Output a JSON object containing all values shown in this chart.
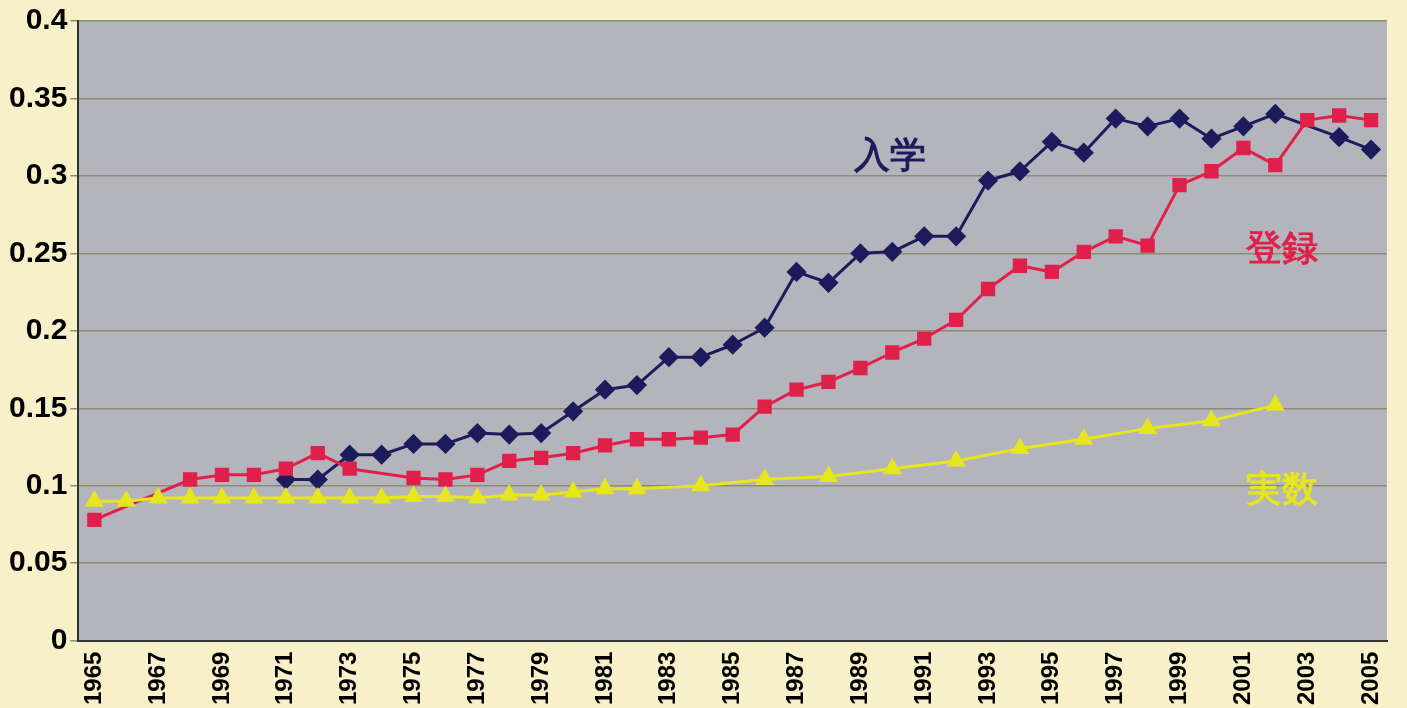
{
  "chart_data": {
    "type": "line",
    "categories": [
      "1965",
      null,
      "1967",
      null,
      "1969",
      null,
      "1971",
      null,
      "1973",
      null,
      "1975",
      null,
      "1977",
      null,
      "1979",
      null,
      "1981",
      null,
      "1983",
      null,
      "1985",
      null,
      "1987",
      null,
      "1989",
      null,
      "1991",
      null,
      "1993",
      null,
      "1995",
      null,
      "1997",
      null,
      "1999",
      null,
      "2001",
      null,
      "2003",
      null,
      "2005"
    ],
    "series": [
      {
        "name": "入学",
        "color": "#1c1c5c",
        "marker": "diamond",
        "values": [
          null,
          null,
          null,
          null,
          null,
          null,
          0.104,
          0.104,
          0.12,
          0.12,
          0.127,
          0.127,
          0.134,
          0.133,
          0.134,
          0.148,
          0.162,
          0.165,
          0.183,
          0.183,
          0.191,
          0.202,
          0.238,
          0.231,
          0.25,
          0.251,
          0.261,
          0.261,
          0.297,
          0.303,
          0.322,
          0.315,
          0.337,
          0.332,
          0.337,
          0.324,
          0.332,
          0.34,
          null,
          0.325,
          0.317
        ]
      },
      {
        "name": "登録",
        "color": "#e0204a",
        "marker": "square",
        "values": [
          0.078,
          null,
          null,
          0.104,
          0.107,
          0.107,
          0.111,
          0.121,
          0.111,
          null,
          0.105,
          0.104,
          0.107,
          0.116,
          0.118,
          0.121,
          0.126,
          0.13,
          0.13,
          0.131,
          0.133,
          0.151,
          0.162,
          0.167,
          0.176,
          0.186,
          0.195,
          0.207,
          0.227,
          0.242,
          0.238,
          0.251,
          0.261,
          0.255,
          0.294,
          0.303,
          0.318,
          0.307,
          0.336,
          0.339,
          0.336
        ]
      },
      {
        "name": "実数",
        "color": "#e6e61c",
        "marker": "triangle",
        "values": [
          0.09,
          0.09,
          0.092,
          0.092,
          0.092,
          0.092,
          0.092,
          0.092,
          0.092,
          0.092,
          0.093,
          0.093,
          0.092,
          0.094,
          0.094,
          0.096,
          0.098,
          0.098,
          null,
          0.1,
          null,
          0.104,
          null,
          0.106,
          null,
          0.111,
          null,
          0.116,
          null,
          0.124,
          null,
          0.13,
          null,
          0.137,
          null,
          0.142,
          null,
          0.152,
          null,
          null,
          null
        ]
      }
    ],
    "ylim": [
      0,
      0.4
    ],
    "yticks": [
      0,
      0.05,
      0.1,
      0.15,
      0.2,
      0.25,
      0.3,
      0.35,
      0.4
    ],
    "grid": "y",
    "legend": false
  }
}
